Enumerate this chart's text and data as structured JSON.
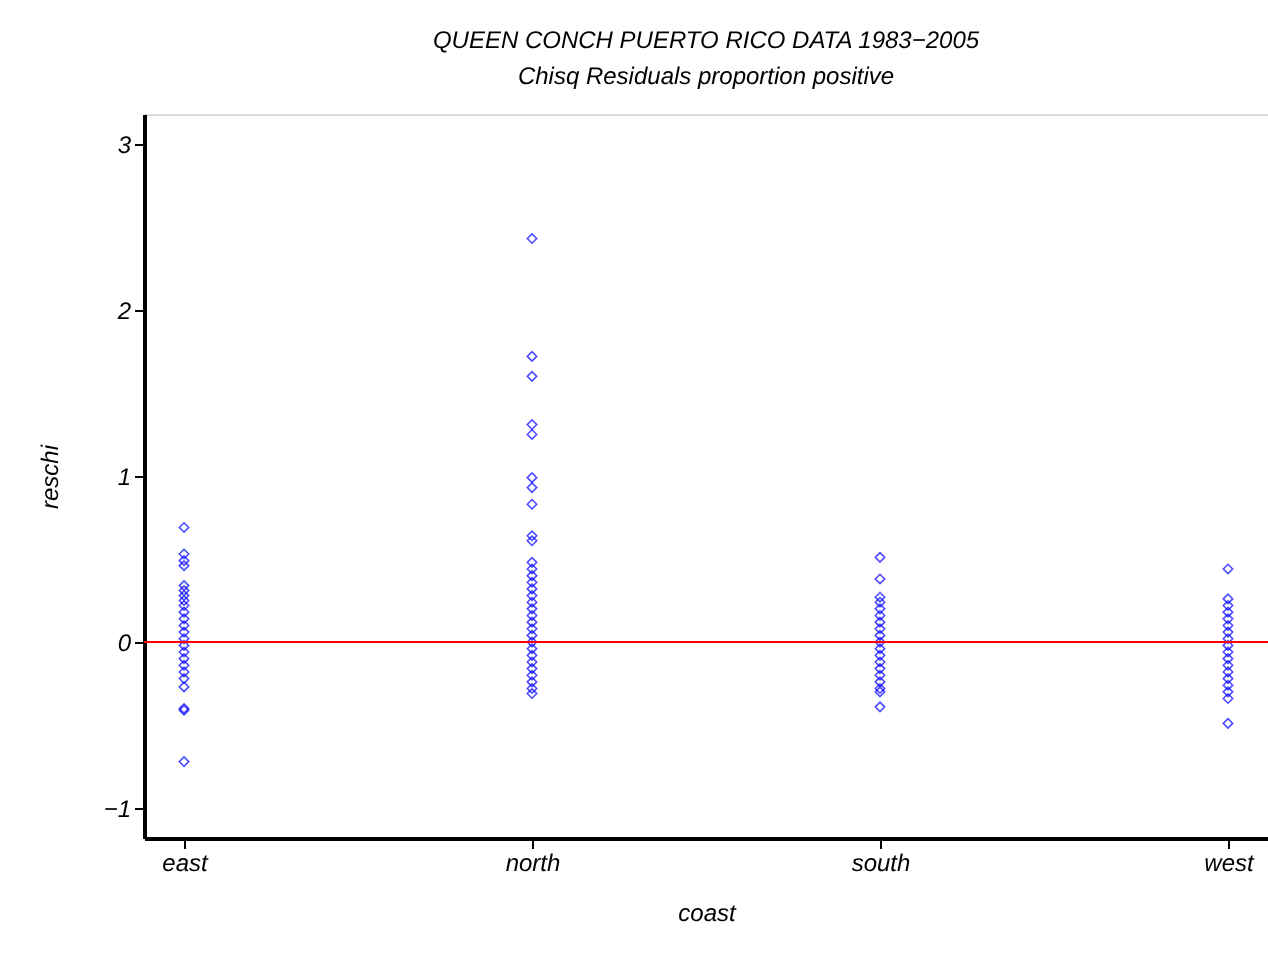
{
  "chart_data": {
    "type": "scatter",
    "title": "QUEEN CONCH PUERTO RICO DATA 1983−2005",
    "subtitle": "Chisq Residuals proportion positive",
    "xlabel": "coast",
    "ylabel": "reschi",
    "categories": [
      "east",
      "north",
      "south",
      "west"
    ],
    "series": [
      {
        "type": "scatter",
        "color": "#0000ff",
        "x": [
          "east",
          "east",
          "east",
          "east",
          "east",
          "east",
          "east",
          "east",
          "east",
          "east",
          "east",
          "east",
          "east",
          "east",
          "east",
          "east",
          "east",
          "east",
          "east",
          "east",
          "east",
          "east",
          "east",
          "east"
        ],
        "values": [
          0.69,
          0.53,
          0.49,
          0.46,
          0.34,
          0.31,
          0.28,
          0.25,
          0.22,
          0.18,
          0.14,
          0.1,
          0.06,
          0.02,
          -0.02,
          -0.06,
          -0.1,
          -0.14,
          -0.18,
          -0.22,
          -0.27,
          -0.4,
          -0.41,
          -0.72
        ]
      },
      {
        "type": "scatter",
        "color": "#0000ff",
        "x": [
          "north",
          "north",
          "north",
          "north",
          "north",
          "north",
          "north",
          "north",
          "north",
          "north",
          "north",
          "north",
          "north",
          "north",
          "north",
          "north",
          "north",
          "north",
          "north",
          "north",
          "north",
          "north",
          "north",
          "north",
          "north",
          "north",
          "north",
          "north",
          "north",
          "north",
          "north"
        ],
        "values": [
          2.43,
          1.72,
          1.6,
          1.31,
          1.25,
          0.99,
          0.93,
          0.83,
          0.64,
          0.61,
          0.48,
          0.44,
          0.4,
          0.36,
          0.32,
          0.28,
          0.24,
          0.2,
          0.16,
          0.12,
          0.08,
          0.04,
          0.0,
          -0.04,
          -0.08,
          -0.12,
          -0.16,
          -0.2,
          -0.24,
          -0.28,
          -0.31
        ]
      },
      {
        "type": "scatter",
        "color": "#0000ff",
        "x": [
          "south",
          "south",
          "south",
          "south",
          "south",
          "south",
          "south",
          "south",
          "south",
          "south",
          "south",
          "south",
          "south",
          "south",
          "south",
          "south",
          "south",
          "south",
          "south"
        ],
        "values": [
          0.51,
          0.38,
          0.27,
          0.24,
          0.2,
          0.16,
          0.12,
          0.08,
          0.04,
          0.0,
          -0.04,
          -0.08,
          -0.12,
          -0.16,
          -0.2,
          -0.24,
          -0.28,
          -0.3,
          -0.39
        ]
      },
      {
        "type": "scatter",
        "color": "#0000ff",
        "x": [
          "west",
          "west",
          "west",
          "west",
          "west",
          "west",
          "west",
          "west",
          "west",
          "west",
          "west",
          "west",
          "west",
          "west",
          "west",
          "west",
          "west",
          "west"
        ],
        "values": [
          0.44,
          0.26,
          0.22,
          0.18,
          0.14,
          0.1,
          0.06,
          0.02,
          -0.02,
          -0.06,
          -0.1,
          -0.14,
          -0.18,
          -0.22,
          -0.26,
          -0.3,
          -0.34,
          -0.49
        ]
      }
    ],
    "ylim": [
      -1.18,
      3.18
    ],
    "yticks": [
      -1,
      0,
      1,
      2,
      3
    ],
    "ref_lines": [
      {
        "axis": "y",
        "value": 0,
        "color": "#ff0000"
      }
    ],
    "marker": "diamond",
    "grid": false
  }
}
